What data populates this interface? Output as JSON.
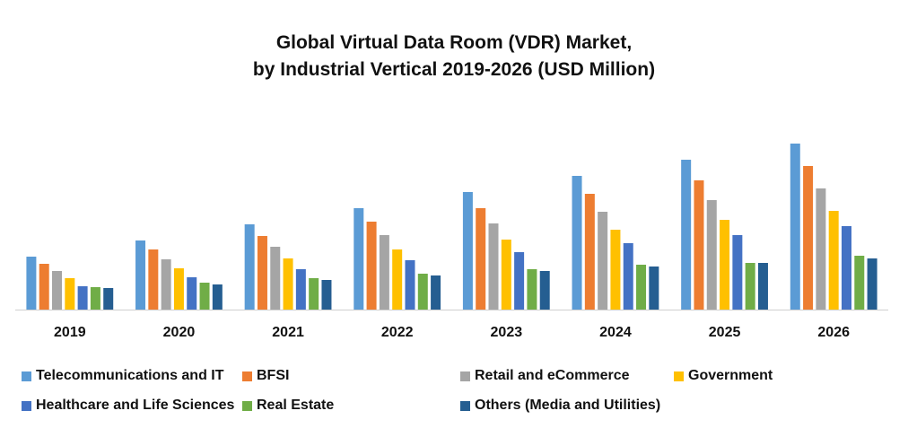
{
  "chart_data": {
    "type": "bar",
    "title": "Global Virtual Data Room (VDR) Market,",
    "subtitle": "by Industrial Vertical 2019-2026 (USD Million)",
    "xlabel": "",
    "ylabel": "",
    "grid": false,
    "legend_position": "bottom",
    "ylim": [
      0,
      200
    ],
    "categories": [
      "2019",
      "2020",
      "2021",
      "2022",
      "2023",
      "2024",
      "2025",
      "2026"
    ],
    "series": [
      {
        "name": "Telecommunications and IT",
        "color": "#5B9BD5",
        "values": [
          59,
          77,
          95,
          113,
          131,
          149,
          167,
          185
        ]
      },
      {
        "name": "BFSI",
        "color": "#ED7D31",
        "values": [
          51,
          67,
          82,
          98,
          113,
          129,
          144,
          160
        ]
      },
      {
        "name": "Retail and eCommerce",
        "color": "#A5A5A5",
        "values": [
          43,
          56,
          70,
          83,
          96,
          109,
          122,
          135
        ]
      },
      {
        "name": "Government",
        "color": "#FFC000",
        "values": [
          35,
          46,
          57,
          67,
          78,
          89,
          100,
          110
        ]
      },
      {
        "name": "Healthcare and Life Sciences",
        "color": "#4472C4",
        "values": [
          26,
          36,
          45,
          55,
          64,
          74,
          83,
          93
        ]
      },
      {
        "name": "Real Estate",
        "color": "#70AD47",
        "values": [
          25,
          30,
          35,
          40,
          45,
          50,
          52,
          60
        ]
      },
      {
        "name": "Others (Media and Utilities)",
        "color": "#255E91",
        "values": [
          24,
          28,
          33,
          38,
          43,
          48,
          52,
          57
        ]
      }
    ]
  }
}
